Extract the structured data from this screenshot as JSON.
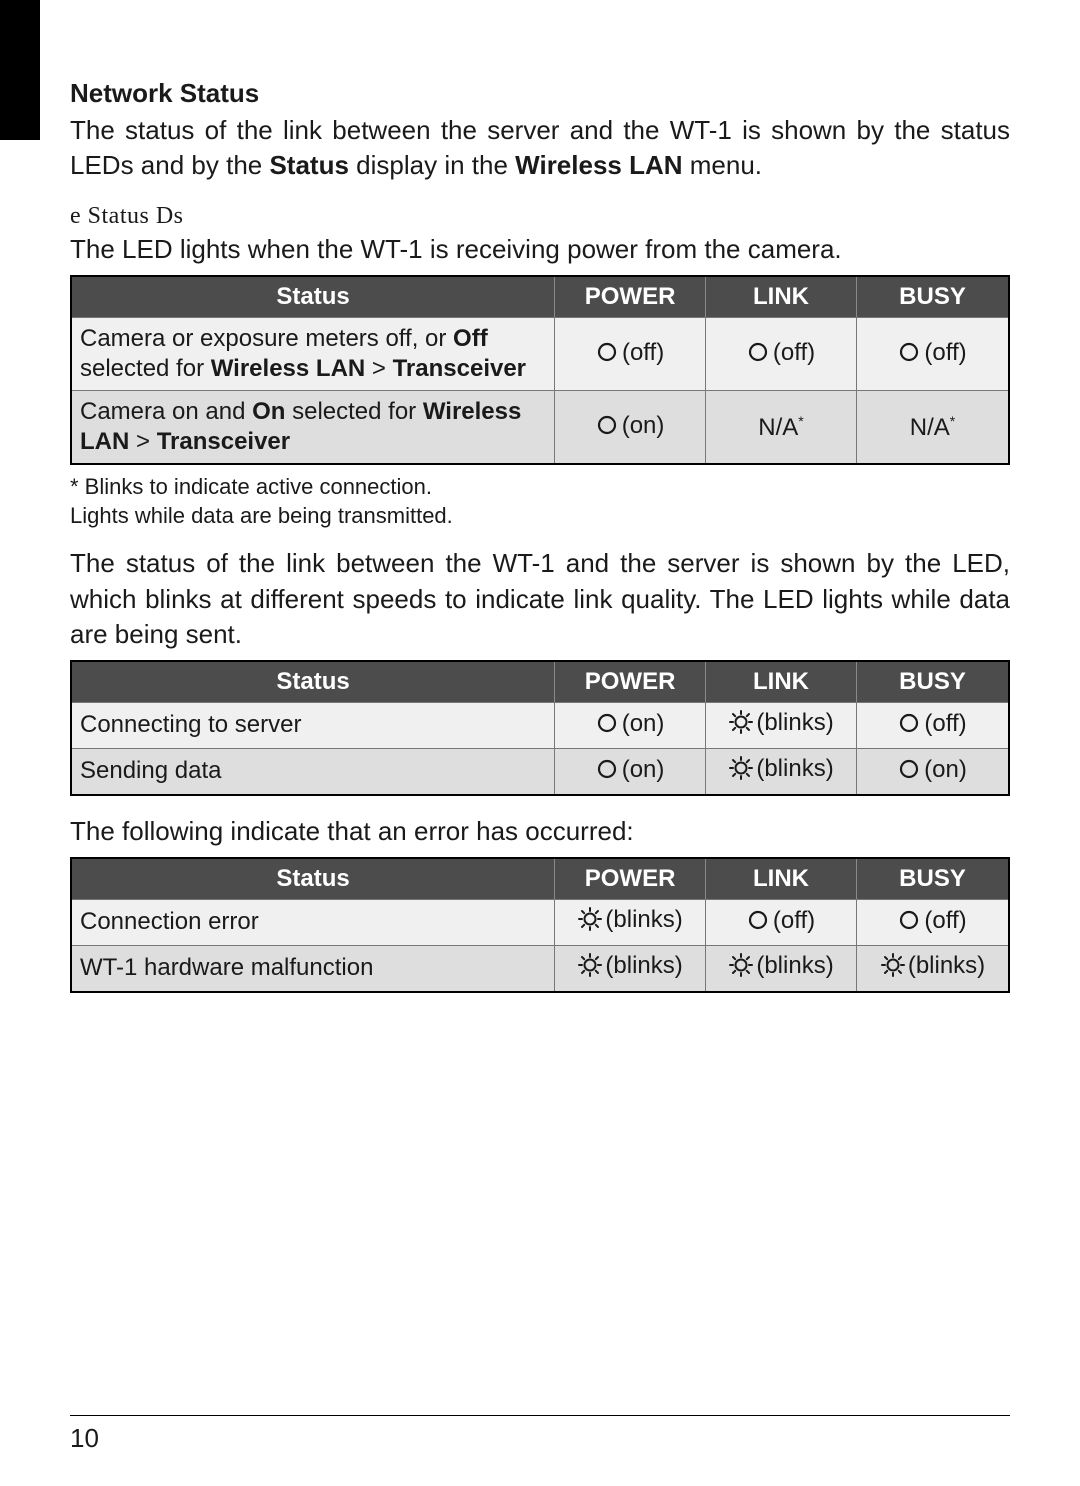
{
  "colors": {
    "header_bg": "#4c4c4c",
    "header_fg": "#ffffff",
    "row_alt0": "#f0f0f0",
    "row_alt1": "#dedede",
    "border": "#777777",
    "text": "#1a1a1a"
  },
  "section_title": "Network Status",
  "intro_line1": "The status of the link between the server and the WT-1 is shown by the status",
  "intro_line2_pre": "LEDs and by the ",
  "intro_line2_b1": "Status",
  "intro_line2_mid": " display in the ",
  "intro_line2_b2": "Wireless LAN",
  "intro_line2_post": " menu.",
  "sub_title": "e Status Ds",
  "power_led_line_pre": "The ",
  "power_led_line_post": " LED lights when the WT-1 is receiving power from the camera.",
  "headers": {
    "status": "Status",
    "power": "POWER",
    "link": "LINK",
    "busy": "BUSY"
  },
  "led": {
    "off": "(off)",
    "on": "(on)",
    "blinks": "(blinks)",
    "na_star": "N/A",
    "na_sup": "*"
  },
  "table1": {
    "rows": [
      {
        "desc_pre": "Camera or exposure meters off, or ",
        "desc_b1": "Off",
        "desc_mid": " selected for ",
        "desc_b2": "Wireless LAN",
        "desc_gt": " > ",
        "desc_b3": "Transceiver",
        "power": "off",
        "link": "off",
        "busy": "off"
      },
      {
        "desc_pre": "Camera on and ",
        "desc_b1": "On",
        "desc_mid": " selected for ",
        "desc_b2": "Wireless LAN",
        "desc_gt": " > ",
        "desc_b3": "Transceiver",
        "power": "on",
        "link": "na",
        "busy": "na"
      }
    ]
  },
  "footnote1": "* Blinks to indicate active connection.",
  "footnote2": "  Lights while data are being transmitted.",
  "mid_para_l1": "The status of the link between the WT-1 and the server is shown by the ",
  "mid_para_l2": "LED, which blinks at different speeds to indicate link quality. The  LED",
  "mid_para_l3": "lights while data are being sent.",
  "table2": {
    "rows": [
      {
        "desc": "Connecting to server",
        "power": "on",
        "link": "blinks",
        "busy": "off"
      },
      {
        "desc": "Sending data",
        "power": "on",
        "link": "blinks",
        "busy": "on"
      }
    ]
  },
  "error_intro": "The following indicate that an error has occurred:",
  "table3": {
    "rows": [
      {
        "desc": "Connection error",
        "power": "blinks",
        "link": "off",
        "busy": "off"
      },
      {
        "desc": "WT-1 hardware malfunction",
        "power": "blinks",
        "link": "blinks",
        "busy": "blinks"
      }
    ]
  },
  "page_number": "10"
}
